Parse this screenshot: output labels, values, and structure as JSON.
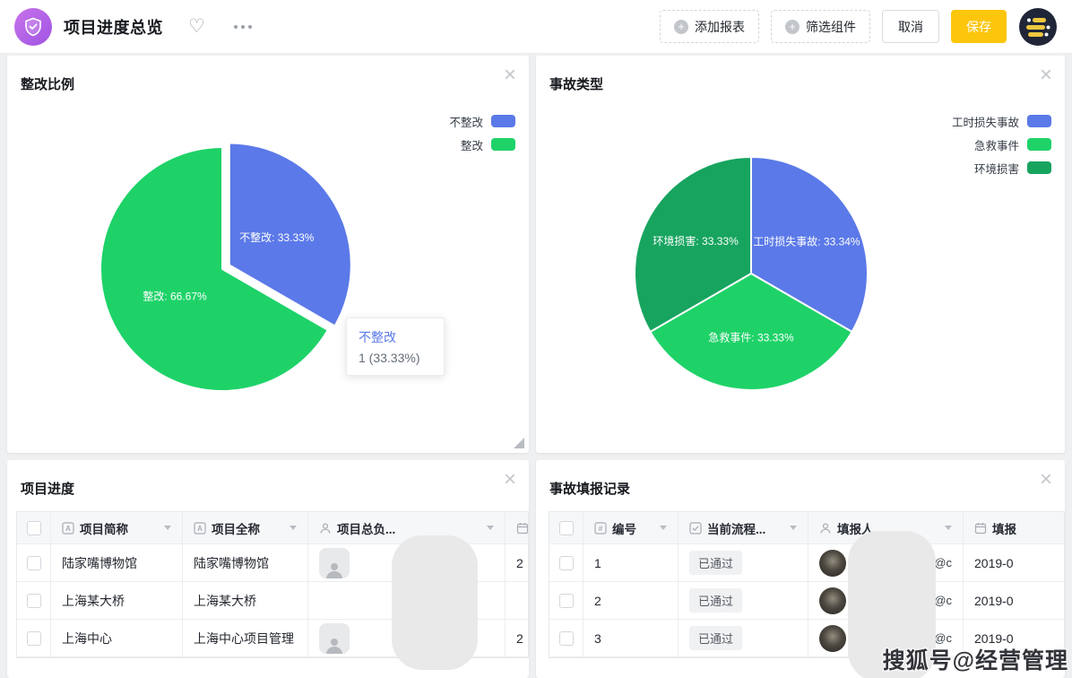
{
  "header": {
    "title": "项目进度总览",
    "app_icon": "shield-check-icon",
    "favorite_icon": "heart-icon",
    "more_icon": "ellipsis-icon",
    "avatar_icon": "logo-avatar",
    "buttons": {
      "add_report": "添加报表",
      "filter_component": "筛选组件",
      "cancel": "取消",
      "save": "保存"
    }
  },
  "colors": {
    "accent_blue": "#5b79e8",
    "green": "#1ed268",
    "dark_green": "#17a45f",
    "save_yellow": "#fcc60c",
    "app_purple": "#a65ae4"
  },
  "chart_data": [
    {
      "type": "pie",
      "title": "整改比例",
      "legend_position": "top-right",
      "legend": [
        "不整改",
        "整改"
      ],
      "slices": [
        {
          "label": "不整改",
          "value": 1,
          "percent": 33.33,
          "color": "#5b79e8",
          "data_label": "不整改: 33.33%",
          "exploded": true
        },
        {
          "label": "整改",
          "value": 2,
          "percent": 66.67,
          "color": "#1ed268",
          "data_label": "整改: 66.67%",
          "exploded": false
        }
      ],
      "tooltip": {
        "name": "不整改",
        "value_text": "1 (33.33%)"
      }
    },
    {
      "type": "pie",
      "title": "事故类型",
      "legend_position": "top-right",
      "legend": [
        "工时损失事故",
        "急救事件",
        "环境损害"
      ],
      "slices": [
        {
          "label": "工时损失事故",
          "percent": 33.34,
          "color": "#5b79e8",
          "data_label": "工时损失事故: 33.34%",
          "exploded": false
        },
        {
          "label": "急救事件",
          "percent": 33.33,
          "color": "#1ed268",
          "data_label": "急救事件: 33.33%",
          "exploded": false
        },
        {
          "label": "环境损害",
          "percent": 33.33,
          "color": "#17a45f",
          "data_label": "环境损害: 33.33%",
          "exploded": false
        }
      ]
    }
  ],
  "tables": [
    {
      "title": "项目进度",
      "columns": [
        {
          "label": "项目简称",
          "icon": "text-field-icon"
        },
        {
          "label": "项目全称",
          "icon": "text-field-icon"
        },
        {
          "label": "项目总负...",
          "icon": "person-icon"
        },
        {
          "label": "",
          "icon": "calendar-icon"
        }
      ],
      "rows": [
        {
          "short_name": "陆家嘴博物馆",
          "full_name": "陆家嘴博物馆",
          "date_fragment": "2"
        },
        {
          "short_name": "上海某大桥",
          "full_name": "上海某大桥",
          "date_fragment": ""
        },
        {
          "short_name": "上海中心",
          "full_name": "上海中心项目管理",
          "date_fragment": "2"
        }
      ]
    },
    {
      "title": "事故填报记录",
      "columns": [
        {
          "label": "编号",
          "icon": "number-icon"
        },
        {
          "label": "当前流程...",
          "icon": "checkbox-check-icon"
        },
        {
          "label": "填报人",
          "icon": "person-icon"
        },
        {
          "label": "填报",
          "icon": "calendar-icon"
        }
      ],
      "rows": [
        {
          "no": "1",
          "status": "已通过",
          "reporter_fragment": "@c",
          "date_fragment": "2019-0"
        },
        {
          "no": "2",
          "status": "已通过",
          "reporter_fragment": "@c",
          "date_fragment": "2019-0"
        },
        {
          "no": "3",
          "status": "已通过",
          "reporter_fragment": "@c",
          "date_fragment": "2019-0"
        }
      ]
    }
  ],
  "watermark": "搜狐号@经营管理"
}
